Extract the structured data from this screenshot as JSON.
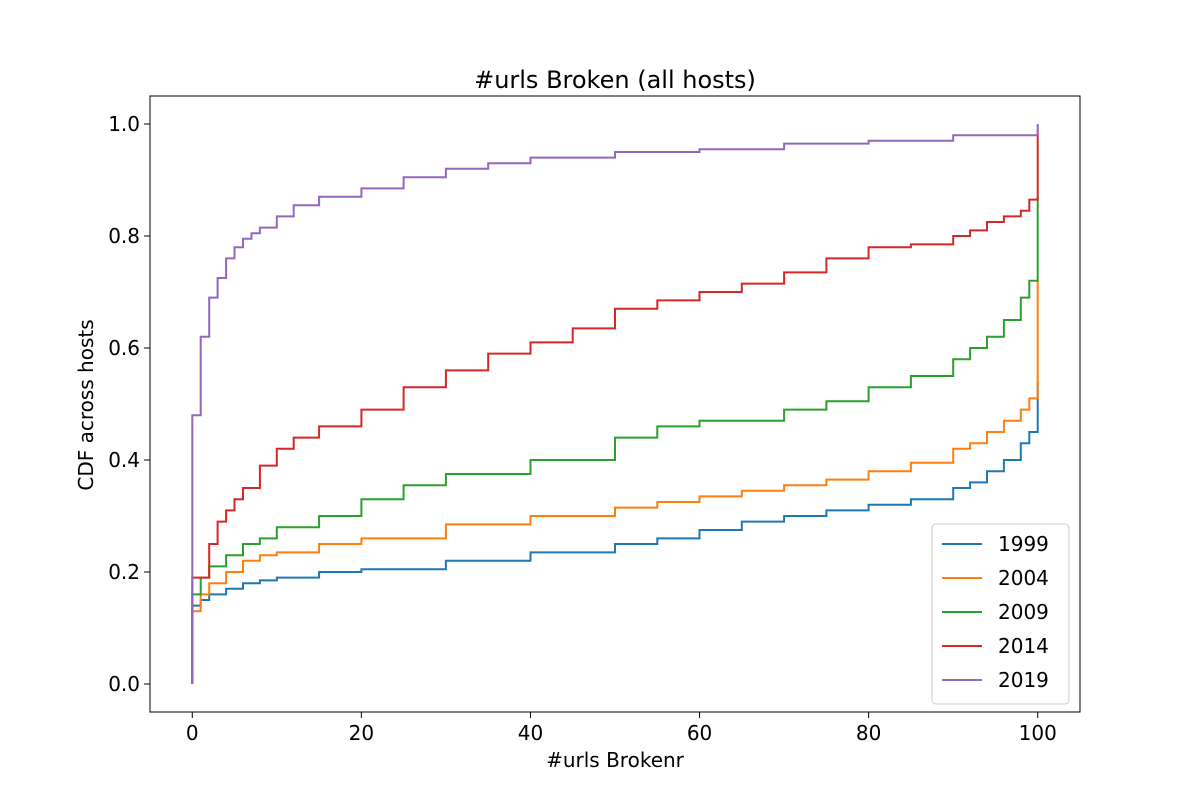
{
  "chart_data": {
    "type": "line",
    "title": "#urls Broken (all hosts)",
    "xlabel": "#urls Brokenr",
    "ylabel": "CDF across hosts",
    "xlim": [
      -5,
      105
    ],
    "ylim": [
      -0.05,
      1.05
    ],
    "xticks": [
      0,
      20,
      40,
      60,
      80,
      100
    ],
    "yticks": [
      0.0,
      0.2,
      0.4,
      0.6,
      0.8,
      1.0
    ],
    "xtick_labels": [
      "0",
      "20",
      "40",
      "60",
      "80",
      "100"
    ],
    "ytick_labels": [
      "0.0",
      "0.2",
      "0.4",
      "0.6",
      "0.8",
      "1.0"
    ],
    "step": true,
    "grid": false,
    "legend_position": "lower-right",
    "series": [
      {
        "name": "1999",
        "color": "#1f77b4",
        "x": [
          0,
          0,
          1,
          2,
          4,
          6,
          8,
          10,
          15,
          20,
          30,
          40,
          50,
          55,
          60,
          65,
          70,
          75,
          80,
          85,
          90,
          92,
          94,
          96,
          98,
          99,
          100,
          100
        ],
        "y": [
          0,
          0.14,
          0.15,
          0.16,
          0.17,
          0.18,
          0.185,
          0.19,
          0.2,
          0.205,
          0.22,
          0.235,
          0.25,
          0.26,
          0.275,
          0.29,
          0.3,
          0.31,
          0.32,
          0.33,
          0.35,
          0.36,
          0.38,
          0.4,
          0.43,
          0.45,
          0.51,
          0.54
        ]
      },
      {
        "name": "2004",
        "color": "#ff7f0e",
        "x": [
          0,
          0,
          1,
          2,
          4,
          6,
          8,
          10,
          15,
          20,
          30,
          40,
          50,
          55,
          60,
          65,
          70,
          75,
          80,
          85,
          90,
          92,
          94,
          96,
          98,
          99,
          100,
          100
        ],
        "y": [
          0,
          0.13,
          0.16,
          0.18,
          0.2,
          0.22,
          0.23,
          0.235,
          0.25,
          0.26,
          0.285,
          0.3,
          0.315,
          0.325,
          0.335,
          0.345,
          0.355,
          0.365,
          0.38,
          0.395,
          0.42,
          0.43,
          0.45,
          0.47,
          0.49,
          0.51,
          0.54,
          0.72
        ]
      },
      {
        "name": "2009",
        "color": "#2ca02c",
        "x": [
          0,
          0,
          1,
          2,
          4,
          6,
          8,
          10,
          15,
          20,
          25,
          30,
          40,
          50,
          55,
          60,
          70,
          75,
          80,
          85,
          90,
          92,
          94,
          96,
          98,
          99,
          100,
          100
        ],
        "y": [
          0,
          0.16,
          0.19,
          0.21,
          0.23,
          0.25,
          0.26,
          0.28,
          0.3,
          0.33,
          0.355,
          0.375,
          0.4,
          0.44,
          0.46,
          0.47,
          0.49,
          0.505,
          0.53,
          0.55,
          0.58,
          0.6,
          0.62,
          0.65,
          0.69,
          0.72,
          0.86,
          0.87
        ]
      },
      {
        "name": "2014",
        "color": "#d62728",
        "x": [
          0,
          0,
          1,
          2,
          3,
          4,
          5,
          6,
          8,
          10,
          12,
          15,
          20,
          25,
          30,
          35,
          40,
          45,
          50,
          55,
          60,
          65,
          70,
          75,
          80,
          85,
          90,
          92,
          94,
          96,
          98,
          99,
          100
        ],
        "y": [
          0,
          0.19,
          0.19,
          0.25,
          0.29,
          0.31,
          0.33,
          0.35,
          0.39,
          0.42,
          0.44,
          0.46,
          0.49,
          0.53,
          0.56,
          0.59,
          0.61,
          0.635,
          0.67,
          0.685,
          0.7,
          0.715,
          0.735,
          0.76,
          0.78,
          0.785,
          0.8,
          0.81,
          0.825,
          0.835,
          0.845,
          0.865,
          0.99
        ]
      },
      {
        "name": "2019",
        "color": "#9467bd",
        "x": [
          0,
          0,
          1,
          2,
          3,
          4,
          5,
          6,
          7,
          8,
          10,
          12,
          15,
          20,
          25,
          30,
          35,
          40,
          50,
          60,
          70,
          80,
          90,
          100,
          100
        ],
        "y": [
          0,
          0.48,
          0.62,
          0.69,
          0.725,
          0.76,
          0.78,
          0.795,
          0.805,
          0.815,
          0.835,
          0.855,
          0.87,
          0.885,
          0.905,
          0.92,
          0.93,
          0.94,
          0.95,
          0.955,
          0.965,
          0.97,
          0.98,
          0.985,
          1.0
        ]
      }
    ]
  }
}
